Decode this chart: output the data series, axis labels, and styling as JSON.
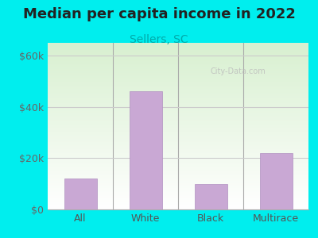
{
  "title": "Median per capita income in 2022",
  "subtitle": "Sellers, SC",
  "categories": [
    "All",
    "White",
    "Black",
    "Multirace"
  ],
  "values": [
    12000,
    46000,
    10000,
    22000
  ],
  "bar_color": "#c9a8d4",
  "bar_edge_color": "#b090c0",
  "title_fontsize": 13,
  "subtitle_fontsize": 10,
  "subtitle_color": "#00aaaa",
  "bg_color": "#00eeee",
  "yticks": [
    0,
    20000,
    40000,
    60000
  ],
  "ytick_labels": [
    "$0",
    "$20k",
    "$40k",
    "$60k"
  ],
  "ylim": [
    0,
    65000
  ],
  "watermark": "City-Data.com",
  "grid_color": "#cccccc"
}
